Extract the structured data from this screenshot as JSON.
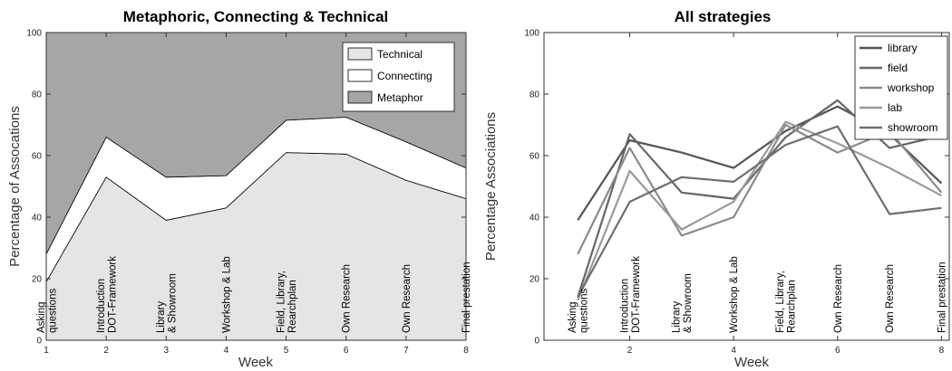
{
  "chart_data": [
    {
      "type": "area",
      "title": "Metaphoric, Connecting & Technical",
      "xlabel": "Week",
      "ylabel": "Percentage of Assocations",
      "x": [
        1,
        2,
        3,
        4,
        5,
        6,
        7,
        8
      ],
      "xlim": [
        1,
        8
      ],
      "ylim": [
        0,
        100
      ],
      "x_ticks": [
        1,
        2,
        3,
        4,
        5,
        6,
        7,
        8
      ],
      "y_ticks": [
        0,
        20,
        40,
        60,
        80,
        100
      ],
      "stacked": true,
      "series": [
        {
          "name": "Technical",
          "color": "#e5e5e5",
          "values": [
            19,
            53,
            39,
            43,
            61,
            60.5,
            52,
            46
          ]
        },
        {
          "name": "Connecting",
          "color": "#ffffff",
          "values": [
            9,
            13,
            14,
            10.5,
            10.5,
            12,
            12.5,
            10
          ]
        },
        {
          "name": "Metaphor",
          "color": "#a6a6a6",
          "values": [
            72,
            34,
            47,
            46.5,
            28.5,
            27.5,
            35.5,
            44
          ]
        }
      ],
      "legend": "top-right",
      "annotations": [
        {
          "x": 1,
          "lines": [
            "Asking",
            "questions"
          ]
        },
        {
          "x": 2,
          "lines": [
            "Introduction",
            "DOT-Framework"
          ]
        },
        {
          "x": 3,
          "lines": [
            "Library",
            "& Showroom"
          ]
        },
        {
          "x": 4,
          "lines": [
            "Workshop & Lab"
          ]
        },
        {
          "x": 5,
          "lines": [
            "Field, Library,",
            "Rearchplan"
          ]
        },
        {
          "x": 6,
          "lines": [
            "Own Research"
          ]
        },
        {
          "x": 7,
          "lines": [
            "Own Research"
          ]
        },
        {
          "x": 8,
          "lines": [
            "Final prestation"
          ]
        }
      ]
    },
    {
      "type": "line",
      "title": "All strategies",
      "xlabel": "Week",
      "ylabel": "Percentage Associations",
      "x": [
        1,
        2,
        3,
        4,
        5,
        6,
        7,
        8
      ],
      "xlim": [
        0.35,
        8.15
      ],
      "ylim": [
        0,
        100
      ],
      "x_ticks": [
        2,
        4,
        6,
        8
      ],
      "y_ticks": [
        0,
        20,
        40,
        60,
        80,
        100
      ],
      "series": [
        {
          "name": "library",
          "color": "#555555",
          "values": [
            39,
            65,
            61,
            56,
            68,
            76,
            67,
            51
          ]
        },
        {
          "name": "field",
          "color": "#666666",
          "values": [
            14,
            67,
            48,
            46,
            66,
            78,
            62.5,
            66.5
          ]
        },
        {
          "name": "workshop",
          "color": "#8a8a8a",
          "values": [
            28,
            62.5,
            34,
            40,
            70,
            61,
            68,
            48
          ]
        },
        {
          "name": "lab",
          "color": "#9a9a9a",
          "values": [
            13,
            55,
            36,
            45,
            71,
            64,
            56,
            47
          ]
        },
        {
          "name": "showroom",
          "color": "#6e6e6e",
          "values": [
            14,
            45,
            53,
            51.5,
            63.5,
            69.5,
            41,
            43
          ]
        }
      ],
      "legend": "top-right",
      "annotations": [
        {
          "x": 1,
          "lines": [
            "Asking",
            "questions"
          ]
        },
        {
          "x": 2,
          "lines": [
            "Introduction",
            "DOT-Framework"
          ]
        },
        {
          "x": 3,
          "lines": [
            "Library",
            "& Showroom"
          ]
        },
        {
          "x": 4,
          "lines": [
            "Workshop & Lab"
          ]
        },
        {
          "x": 5,
          "lines": [
            "Field, Library,",
            "Rearchplan"
          ]
        },
        {
          "x": 6,
          "lines": [
            "Own Research"
          ]
        },
        {
          "x": 7,
          "lines": [
            "Own Research"
          ]
        },
        {
          "x": 8,
          "lines": [
            "Final prestation"
          ]
        }
      ]
    }
  ]
}
